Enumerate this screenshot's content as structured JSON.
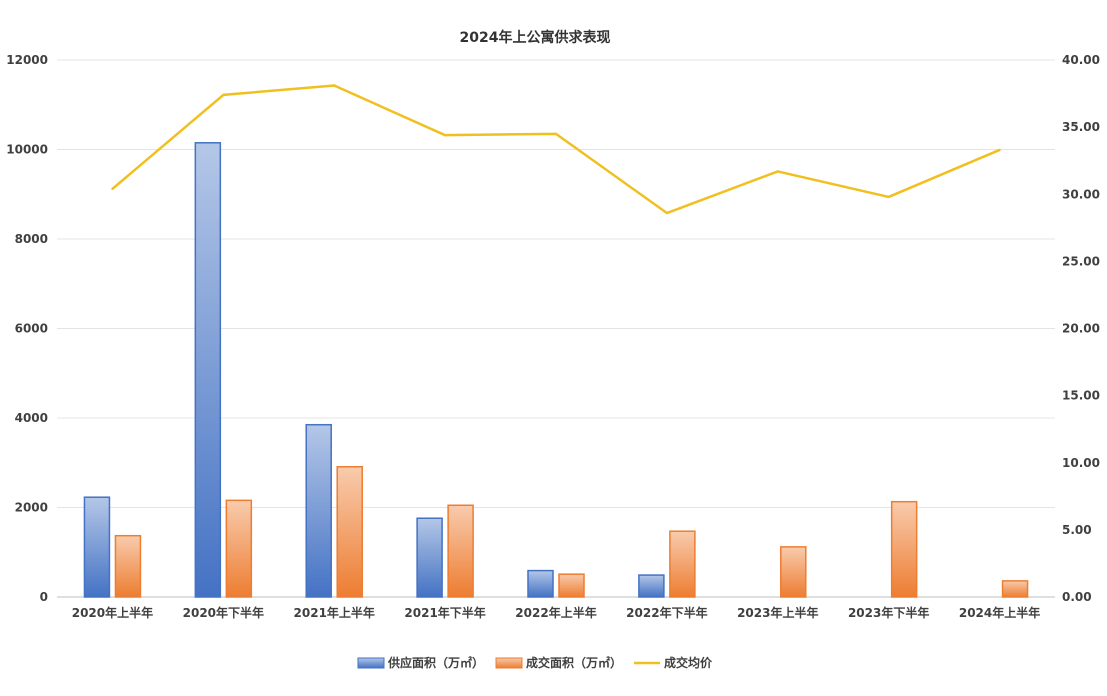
{
  "chart_data": {
    "type": "bar",
    "title": "2024年上公寓供求表现",
    "categories": [
      "2020年上半年",
      "2020年下半年",
      "2021年上半年",
      "2021年下半年",
      "2022年上半年",
      "2022年下半年",
      "2023年上半年",
      "2023年下半年",
      "2024年上半年"
    ],
    "series": [
      {
        "name": "供应面积（万㎡）",
        "type": "bar",
        "axis": "left",
        "color": "#4472C4",
        "values": [
          2230,
          10150,
          3850,
          1760,
          590,
          490,
          0,
          0,
          0
        ]
      },
      {
        "name": "成交面积（万㎡）",
        "type": "bar",
        "axis": "left",
        "color": "#ED7D31",
        "values": [
          1370,
          2160,
          2910,
          2050,
          510,
          1470,
          1120,
          2130,
          360
        ]
      },
      {
        "name": "成交均价",
        "type": "line",
        "axis": "right",
        "color": "#F0C020",
        "values": [
          30.4,
          37.4,
          38.1,
          34.4,
          34.5,
          28.6,
          31.7,
          29.8,
          33.3
        ]
      }
    ],
    "y_left": {
      "ylim": [
        0,
        12000
      ],
      "ticks": [
        "0",
        "2000",
        "4000",
        "6000",
        "8000",
        "10000",
        "12000"
      ]
    },
    "y_right": {
      "ylim": [
        0,
        40
      ],
      "ticks": [
        "0.00",
        "5.00",
        "10.00",
        "15.00",
        "20.00",
        "25.00",
        "30.00",
        "35.00",
        "40.00"
      ]
    },
    "grid": true,
    "legend_position": "bottom"
  }
}
